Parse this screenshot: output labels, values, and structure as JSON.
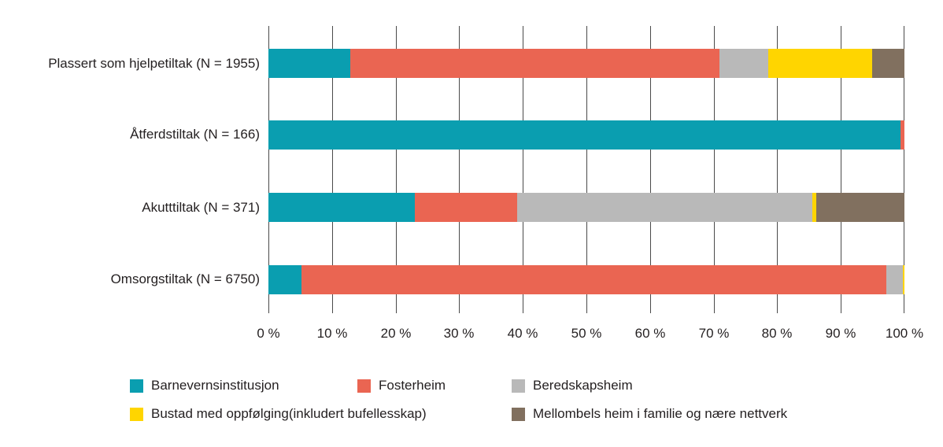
{
  "figure": {
    "background": "#ffffff",
    "text_color": "#231f20",
    "gridline_color": "#4a4a4a"
  },
  "chart_data": {
    "type": "bar",
    "orientation": "horizontal",
    "stacked": true,
    "title": "",
    "xlabel": "",
    "ylabel": "",
    "xlim": [
      0,
      100
    ],
    "x_tick_step": 10,
    "x_tick_labels": [
      "0 %",
      "10 %",
      "20 %",
      "30 %",
      "40 %",
      "50 %",
      "60 %",
      "70 %",
      "80 %",
      "90 %",
      "100 %"
    ],
    "grid": "vertical",
    "legend_position": "bottom",
    "categories": [
      "Plassert som hjelpetiltak (N = 1955)",
      "Åtferdstiltak (N = 166)",
      "Akutttiltak (N = 371)",
      "Omsorgstiltak (N = 6750)"
    ],
    "series": [
      {
        "name": "Barnevernsinstitusjon",
        "color": "#0a9eb0",
        "values": [
          12.9,
          99.4,
          23.0,
          5.2
        ]
      },
      {
        "name": "Fosterheim",
        "color": "#ea6552",
        "values": [
          58.0,
          0.6,
          16.1,
          91.9
        ]
      },
      {
        "name": "Beredskapsheim",
        "color": "#b9b9b9",
        "values": [
          7.7,
          0,
          46.4,
          2.6
        ]
      },
      {
        "name": "Bustad med oppfølging(inkludert bufellesskap)",
        "color": "#ffd500",
        "values": [
          16.3,
          0,
          0.6,
          0.3
        ]
      },
      {
        "name": "Mellombels heim i familie og nære nettverk",
        "color": "#81705f",
        "values": [
          5.1,
          0,
          13.9,
          0
        ]
      }
    ],
    "legend_rows": [
      [
        0,
        1,
        2
      ],
      [
        3,
        4
      ]
    ]
  }
}
